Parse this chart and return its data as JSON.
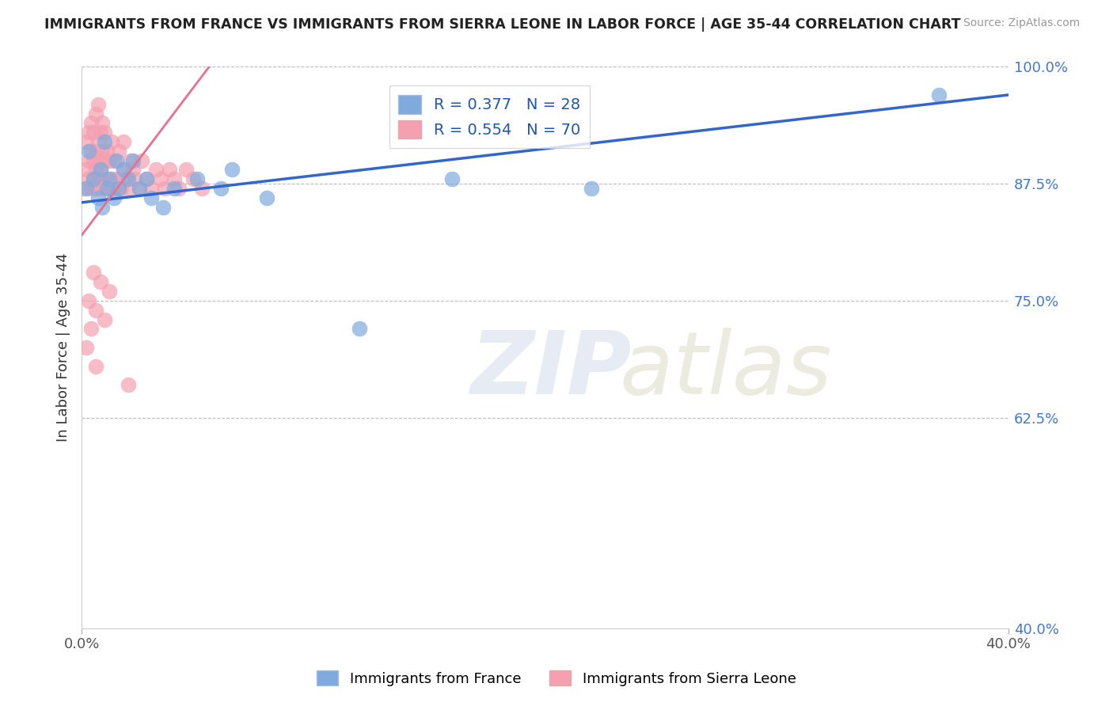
{
  "title": "IMMIGRANTS FROM FRANCE VS IMMIGRANTS FROM SIERRA LEONE IN LABOR FORCE | AGE 35-44 CORRELATION CHART",
  "source": "Source: ZipAtlas.com",
  "ylabel": "In Labor Force | Age 35-44",
  "xlim": [
    0.0,
    0.4
  ],
  "ylim": [
    0.4,
    1.0
  ],
  "france_color": "#7faadd",
  "sierra_color": "#f4a0b0",
  "france_R": 0.377,
  "france_N": 28,
  "sierra_R": 0.554,
  "sierra_N": 70,
  "france_line_color": "#3366cc",
  "sierra_line_color": "#e87090",
  "legend_label_france": "Immigrants from France",
  "legend_label_sierra": "Immigrants from Sierra Leone",
  "france_scatter_x": [
    0.002,
    0.003,
    0.005,
    0.007,
    0.008,
    0.009,
    0.01,
    0.011,
    0.012,
    0.014,
    0.015,
    0.016,
    0.018,
    0.02,
    0.022,
    0.025,
    0.028,
    0.03,
    0.035,
    0.04,
    0.05,
    0.06,
    0.065,
    0.08,
    0.12,
    0.16,
    0.22,
    0.37
  ],
  "france_scatter_y": [
    0.87,
    0.91,
    0.88,
    0.86,
    0.89,
    0.85,
    0.92,
    0.87,
    0.88,
    0.86,
    0.9,
    0.87,
    0.89,
    0.88,
    0.9,
    0.87,
    0.88,
    0.86,
    0.85,
    0.87,
    0.88,
    0.87,
    0.89,
    0.86,
    0.72,
    0.88,
    0.87,
    0.97
  ],
  "sierra_scatter_x": [
    0.001,
    0.002,
    0.002,
    0.003,
    0.003,
    0.003,
    0.004,
    0.004,
    0.004,
    0.005,
    0.005,
    0.005,
    0.006,
    0.006,
    0.006,
    0.006,
    0.007,
    0.007,
    0.007,
    0.007,
    0.008,
    0.008,
    0.008,
    0.009,
    0.009,
    0.009,
    0.01,
    0.01,
    0.01,
    0.011,
    0.011,
    0.012,
    0.012,
    0.013,
    0.013,
    0.014,
    0.014,
    0.015,
    0.016,
    0.017,
    0.018,
    0.018,
    0.019,
    0.02,
    0.021,
    0.022,
    0.023,
    0.025,
    0.026,
    0.028,
    0.03,
    0.032,
    0.034,
    0.036,
    0.038,
    0.04,
    0.042,
    0.045,
    0.048,
    0.052,
    0.003,
    0.005,
    0.006,
    0.008,
    0.01,
    0.012,
    0.002,
    0.004,
    0.006,
    0.02
  ],
  "sierra_scatter_y": [
    0.87,
    0.89,
    0.92,
    0.88,
    0.9,
    0.93,
    0.87,
    0.91,
    0.94,
    0.88,
    0.9,
    0.93,
    0.87,
    0.89,
    0.91,
    0.95,
    0.88,
    0.9,
    0.92,
    0.96,
    0.87,
    0.89,
    0.93,
    0.88,
    0.91,
    0.94,
    0.87,
    0.9,
    0.93,
    0.88,
    0.91,
    0.87,
    0.9,
    0.88,
    0.92,
    0.87,
    0.9,
    0.88,
    0.91,
    0.87,
    0.89,
    0.92,
    0.88,
    0.87,
    0.9,
    0.89,
    0.88,
    0.87,
    0.9,
    0.88,
    0.87,
    0.89,
    0.88,
    0.87,
    0.89,
    0.88,
    0.87,
    0.89,
    0.88,
    0.87,
    0.75,
    0.78,
    0.74,
    0.77,
    0.73,
    0.76,
    0.7,
    0.72,
    0.68,
    0.66
  ]
}
